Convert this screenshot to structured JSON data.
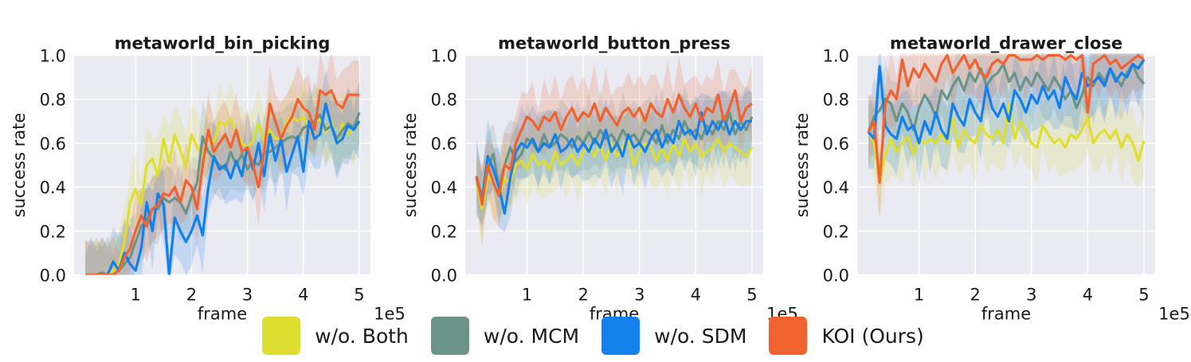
{
  "chart_data": [
    {
      "type": "line",
      "title": "metaworld_bin_picking",
      "xlabel": "frame",
      "ylabel": "success rate",
      "x_multiplier_label": "1e5",
      "xlim": [
        -0.1,
        5.2
      ],
      "ylim": [
        0,
        1
      ],
      "x_ticks": [
        1,
        2,
        3,
        4,
        5
      ],
      "y_ticks": [
        0.0,
        0.2,
        0.4,
        0.6,
        0.8,
        1.0
      ],
      "y_tick_labels": [
        "0.0",
        "0.2",
        "0.4",
        "0.6",
        "0.8",
        "1.0"
      ],
      "grid": true,
      "x": [
        0.1,
        0.2,
        0.3,
        0.4,
        0.5,
        0.6,
        0.7,
        0.8,
        0.9,
        1.0,
        1.1,
        1.2,
        1.3,
        1.4,
        1.5,
        1.6,
        1.7,
        1.8,
        1.9,
        2.0,
        2.1,
        2.2,
        2.3,
        2.4,
        2.5,
        2.6,
        2.7,
        2.8,
        2.9,
        3.0,
        3.1,
        3.2,
        3.3,
        3.4,
        3.5,
        3.6,
        3.7,
        3.8,
        3.9,
        4.0,
        4.1,
        4.2,
        4.3,
        4.4,
        4.5,
        4.6,
        4.7,
        4.8,
        4.9,
        5.0
      ],
      "series": [
        {
          "key": "both",
          "values": [
            0.0,
            0.0,
            0.0,
            0.0,
            0.0,
            0.02,
            0.05,
            0.15,
            0.33,
            0.39,
            0.32,
            0.5,
            0.53,
            0.45,
            0.62,
            0.51,
            0.64,
            0.57,
            0.49,
            0.64,
            0.58,
            0.54,
            0.63,
            0.6,
            0.7,
            0.68,
            0.71,
            0.65,
            0.6,
            0.58,
            0.61,
            0.69,
            0.61,
            0.66,
            0.62,
            0.62,
            0.7,
            0.72,
            0.7,
            0.72,
            0.68,
            0.7,
            0.71,
            0.65,
            0.7,
            0.6,
            0.69,
            0.64,
            0.67,
            0.68
          ]
        },
        {
          "key": "mcm",
          "values": [
            0.0,
            0.0,
            0.0,
            0.01,
            0.0,
            0.0,
            0.02,
            0.05,
            0.08,
            0.15,
            0.22,
            0.25,
            0.3,
            0.3,
            0.35,
            0.33,
            0.35,
            0.33,
            0.28,
            0.36,
            0.42,
            0.63,
            0.56,
            0.53,
            0.5,
            0.48,
            0.56,
            0.5,
            0.55,
            0.48,
            0.52,
            0.5,
            0.56,
            0.56,
            0.58,
            0.6,
            0.62,
            0.63,
            0.62,
            0.67,
            0.68,
            0.7,
            0.73,
            0.66,
            0.68,
            0.62,
            0.66,
            0.69,
            0.67,
            0.74
          ]
        },
        {
          "key": "sdm",
          "values": [
            0.0,
            0.0,
            0.0,
            0.0,
            0.0,
            0.06,
            0.02,
            0.1,
            0.05,
            0.02,
            0.12,
            0.33,
            0.2,
            0.37,
            0.32,
            0.0,
            0.26,
            0.2,
            0.15,
            0.2,
            0.27,
            0.18,
            0.4,
            0.54,
            0.48,
            0.5,
            0.44,
            0.52,
            0.45,
            0.58,
            0.48,
            0.6,
            0.45,
            0.64,
            0.52,
            0.62,
            0.47,
            0.55,
            0.63,
            0.47,
            0.7,
            0.62,
            0.64,
            0.78,
            0.68,
            0.6,
            0.62,
            0.68,
            0.66,
            0.7
          ]
        },
        {
          "key": "koi",
          "values": [
            0.0,
            0.0,
            0.0,
            0.0,
            0.0,
            0.0,
            0.02,
            0.08,
            0.12,
            0.2,
            0.27,
            0.22,
            0.3,
            0.32,
            0.37,
            0.36,
            0.4,
            0.33,
            0.43,
            0.4,
            0.3,
            0.5,
            0.66,
            0.56,
            0.6,
            0.64,
            0.58,
            0.66,
            0.56,
            0.58,
            0.5,
            0.4,
            0.56,
            0.78,
            0.7,
            0.62,
            0.68,
            0.72,
            0.8,
            0.76,
            0.74,
            0.66,
            0.84,
            0.82,
            0.84,
            0.78,
            0.76,
            0.82,
            0.82,
            0.82
          ]
        }
      ]
    },
    {
      "type": "line",
      "title": "metaworld_button_press",
      "xlabel": "frame",
      "ylabel": "success rate",
      "x_multiplier_label": "1e5",
      "xlim": [
        -0.1,
        5.2
      ],
      "ylim": [
        0,
        1
      ],
      "x_ticks": [
        1,
        2,
        3,
        4,
        5
      ],
      "y_ticks": [
        0.0,
        0.2,
        0.4,
        0.6,
        0.8,
        1.0
      ],
      "y_tick_labels": [
        "0.0",
        "0.2",
        "0.4",
        "0.6",
        "0.8",
        "1.0"
      ],
      "grid": true,
      "x": [
        0.1,
        0.2,
        0.3,
        0.4,
        0.5,
        0.6,
        0.7,
        0.8,
        0.9,
        1.0,
        1.1,
        1.2,
        1.3,
        1.4,
        1.5,
        1.6,
        1.7,
        1.8,
        1.9,
        2.0,
        2.1,
        2.2,
        2.3,
        2.4,
        2.5,
        2.6,
        2.7,
        2.8,
        2.9,
        3.0,
        3.1,
        3.2,
        3.3,
        3.4,
        3.5,
        3.6,
        3.7,
        3.8,
        3.9,
        4.0,
        4.1,
        4.2,
        4.3,
        4.4,
        4.5,
        4.6,
        4.7,
        4.8,
        4.9,
        5.0
      ],
      "series": [
        {
          "key": "both",
          "values": [
            0.42,
            0.3,
            0.45,
            0.42,
            0.36,
            0.44,
            0.42,
            0.5,
            0.52,
            0.48,
            0.55,
            0.5,
            0.52,
            0.48,
            0.56,
            0.5,
            0.52,
            0.55,
            0.5,
            0.56,
            0.58,
            0.54,
            0.6,
            0.52,
            0.6,
            0.54,
            0.58,
            0.62,
            0.5,
            0.56,
            0.6,
            0.58,
            0.52,
            0.58,
            0.52,
            0.6,
            0.54,
            0.62,
            0.56,
            0.6,
            0.54,
            0.56,
            0.58,
            0.62,
            0.56,
            0.6,
            0.58,
            0.56,
            0.54,
            0.58
          ]
        },
        {
          "key": "mcm",
          "values": [
            0.45,
            0.35,
            0.48,
            0.55,
            0.4,
            0.5,
            0.58,
            0.52,
            0.55,
            0.62,
            0.6,
            0.56,
            0.64,
            0.58,
            0.6,
            0.64,
            0.62,
            0.58,
            0.63,
            0.6,
            0.65,
            0.6,
            0.66,
            0.62,
            0.64,
            0.6,
            0.66,
            0.62,
            0.64,
            0.6,
            0.66,
            0.64,
            0.6,
            0.68,
            0.6,
            0.66,
            0.62,
            0.7,
            0.64,
            0.66,
            0.62,
            0.68,
            0.64,
            0.7,
            0.66,
            0.74,
            0.64,
            0.7,
            0.66,
            0.72
          ]
        },
        {
          "key": "sdm",
          "values": [
            0.44,
            0.34,
            0.54,
            0.48,
            0.4,
            0.28,
            0.44,
            0.56,
            0.6,
            0.58,
            0.62,
            0.56,
            0.6,
            0.58,
            0.64,
            0.56,
            0.58,
            0.62,
            0.56,
            0.6,
            0.56,
            0.62,
            0.58,
            0.66,
            0.56,
            0.6,
            0.54,
            0.64,
            0.58,
            0.6,
            0.56,
            0.62,
            0.66,
            0.58,
            0.64,
            0.6,
            0.7,
            0.64,
            0.66,
            0.62,
            0.74,
            0.64,
            0.7,
            0.66,
            0.72,
            0.64,
            0.7,
            0.66,
            0.7,
            0.7
          ]
        },
        {
          "key": "koi",
          "values": [
            0.45,
            0.32,
            0.5,
            0.42,
            0.36,
            0.5,
            0.48,
            0.6,
            0.66,
            0.72,
            0.7,
            0.66,
            0.72,
            0.7,
            0.74,
            0.66,
            0.72,
            0.76,
            0.7,
            0.74,
            0.72,
            0.78,
            0.7,
            0.76,
            0.72,
            0.68,
            0.74,
            0.76,
            0.72,
            0.76,
            0.7,
            0.78,
            0.74,
            0.72,
            0.8,
            0.74,
            0.82,
            0.76,
            0.72,
            0.78,
            0.7,
            0.76,
            0.74,
            0.82,
            0.7,
            0.76,
            0.84,
            0.7,
            0.76,
            0.78
          ]
        }
      ]
    },
    {
      "type": "line",
      "title": "metaworld_drawer_close",
      "xlabel": "frame",
      "ylabel": "success rate",
      "x_multiplier_label": "1e5",
      "xlim": [
        -0.1,
        5.2
      ],
      "ylim": [
        0,
        1
      ],
      "x_ticks": [
        1,
        2,
        3,
        4,
        5
      ],
      "y_ticks": [
        0.0,
        0.2,
        0.4,
        0.6,
        0.8,
        1.0
      ],
      "y_tick_labels": [
        "0.0",
        "0.2",
        "0.4",
        "0.6",
        "0.8",
        "1.0"
      ],
      "grid": true,
      "x": [
        0.1,
        0.2,
        0.3,
        0.4,
        0.5,
        0.6,
        0.7,
        0.8,
        0.9,
        1.0,
        1.1,
        1.2,
        1.3,
        1.4,
        1.5,
        1.6,
        1.7,
        1.8,
        1.9,
        2.0,
        2.1,
        2.2,
        2.3,
        2.4,
        2.5,
        2.6,
        2.7,
        2.8,
        2.9,
        3.0,
        3.1,
        3.2,
        3.3,
        3.4,
        3.5,
        3.6,
        3.7,
        3.8,
        3.9,
        4.0,
        4.1,
        4.2,
        4.3,
        4.4,
        4.5,
        4.6,
        4.7,
        4.8,
        4.9,
        5.0
      ],
      "series": [
        {
          "key": "both",
          "values": [
            0.65,
            0.6,
            0.42,
            0.55,
            0.62,
            0.56,
            0.6,
            0.63,
            0.55,
            0.62,
            0.6,
            0.62,
            0.6,
            0.64,
            0.6,
            0.72,
            0.58,
            0.66,
            0.62,
            0.6,
            0.68,
            0.64,
            0.62,
            0.66,
            0.6,
            0.78,
            0.62,
            0.7,
            0.66,
            0.6,
            0.58,
            0.68,
            0.64,
            0.6,
            0.62,
            0.58,
            0.64,
            0.62,
            0.66,
            0.72,
            0.6,
            0.64,
            0.66,
            0.62,
            0.66,
            0.58,
            0.64,
            0.6,
            0.52,
            0.61
          ]
        },
        {
          "key": "mcm",
          "values": [
            0.65,
            0.72,
            0.75,
            0.8,
            0.78,
            0.7,
            0.78,
            0.74,
            0.66,
            0.76,
            0.82,
            0.78,
            0.72,
            0.84,
            0.8,
            0.86,
            0.9,
            0.84,
            0.92,
            0.88,
            0.94,
            0.86,
            0.9,
            0.92,
            0.96,
            0.88,
            0.92,
            0.84,
            0.9,
            0.86,
            0.92,
            0.88,
            0.84,
            0.9,
            0.86,
            0.8,
            0.84,
            0.76,
            0.82,
            0.9,
            0.86,
            0.92,
            0.88,
            0.94,
            0.9,
            0.86,
            0.92,
            0.96,
            0.9,
            0.87
          ]
        },
        {
          "key": "sdm",
          "values": [
            0.65,
            0.62,
            0.95,
            0.68,
            0.64,
            0.62,
            0.72,
            0.66,
            0.68,
            0.6,
            0.7,
            0.64,
            0.74,
            0.66,
            0.62,
            0.78,
            0.72,
            0.68,
            0.8,
            0.74,
            0.7,
            0.86,
            0.76,
            0.72,
            0.78,
            0.7,
            0.84,
            0.8,
            0.74,
            0.82,
            0.78,
            0.86,
            0.8,
            0.84,
            0.76,
            0.9,
            0.84,
            0.8,
            0.92,
            0.86,
            0.88,
            0.9,
            0.86,
            0.94,
            0.88,
            0.92,
            0.9,
            0.96,
            0.94,
            0.98
          ]
        },
        {
          "key": "koi",
          "values": [
            0.65,
            0.7,
            0.42,
            0.78,
            0.84,
            0.8,
            0.98,
            0.86,
            0.94,
            0.9,
            0.96,
            0.92,
            0.88,
            0.96,
            1.0,
            0.92,
            0.96,
            1.0,
            0.94,
            0.98,
            0.92,
            0.9,
            0.96,
            0.98,
            0.96,
            1.0,
            1.0,
            0.98,
            0.98,
            0.98,
            1.0,
            0.98,
            1.0,
            1.0,
            1.0,
            0.98,
            1.0,
            0.98,
            1.0,
            0.74,
            0.96,
            0.98,
            1.0,
            0.96,
            0.98,
            0.94,
            0.96,
            0.98,
            1.0,
            0.98
          ]
        }
      ]
    }
  ],
  "legend": [
    {
      "key": "both",
      "label": "w/o. Both",
      "color": "#dede30"
    },
    {
      "key": "mcm",
      "label": "w/o. MCM",
      "color": "#6b9488"
    },
    {
      "key": "sdm",
      "label": "w/o. SDM",
      "color": "#1380ec"
    },
    {
      "key": "koi",
      "label": "KOI (Ours)",
      "color": "#f0622f"
    }
  ],
  "style": {
    "plot_background": "#eaeaf2",
    "grid_color": "#ffffff",
    "text_color": "#1a1a1a"
  }
}
